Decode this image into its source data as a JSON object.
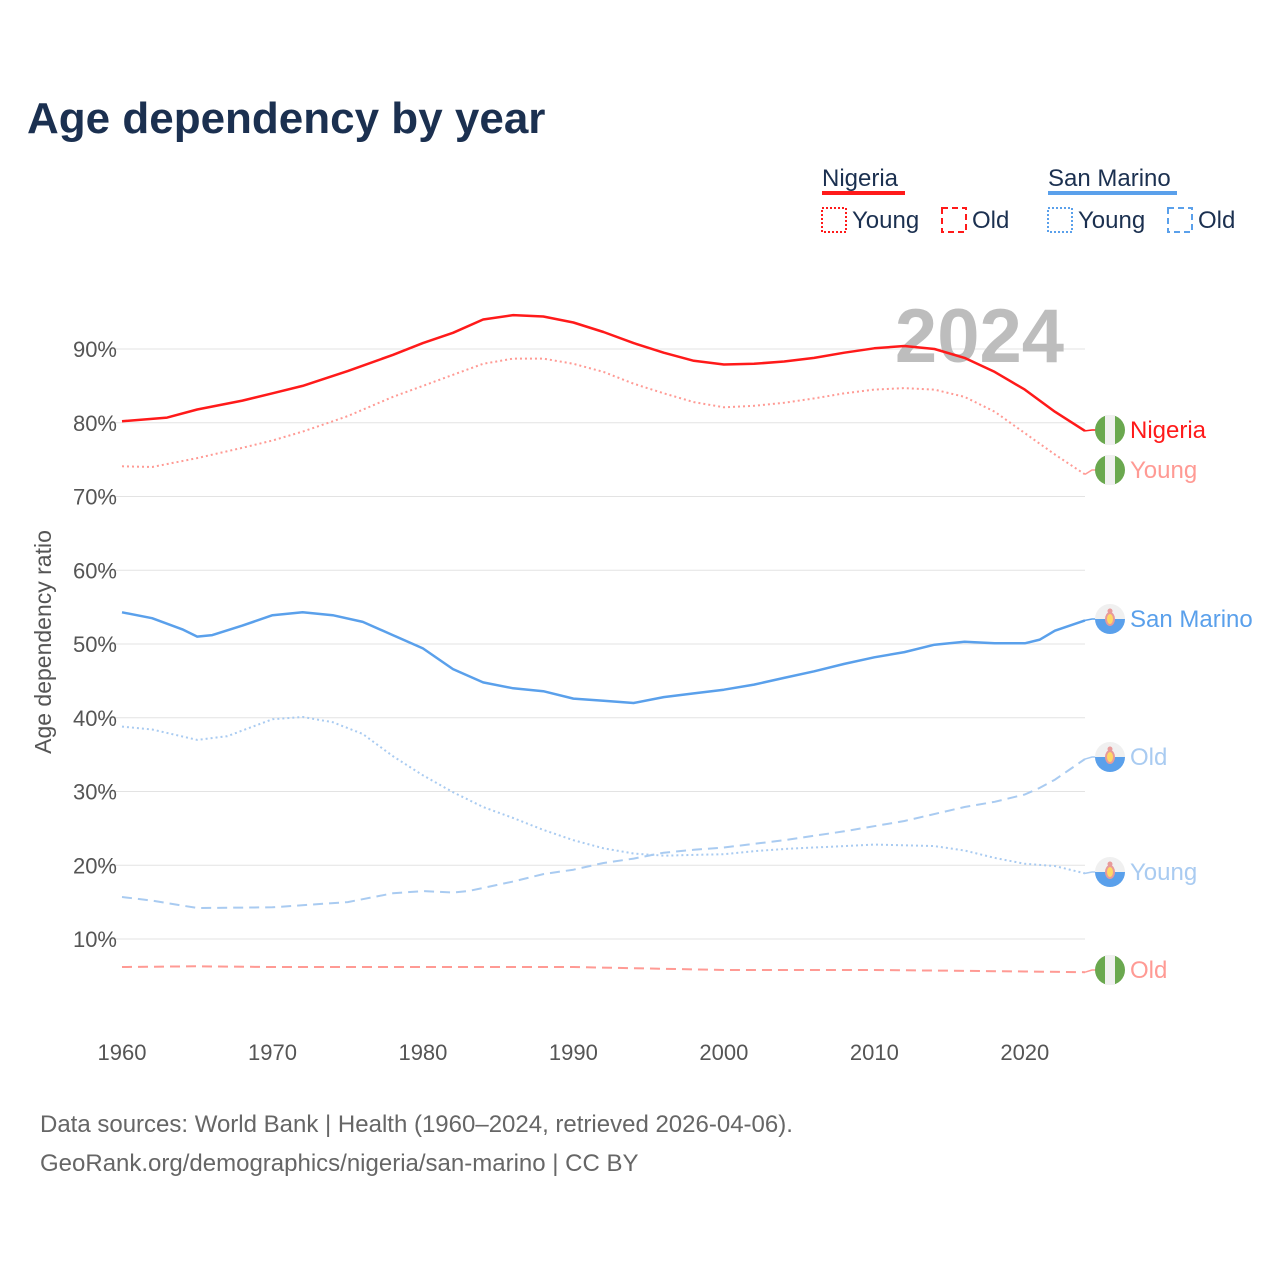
{
  "chart_data": {
    "type": "line",
    "title": "Age dependency by year",
    "ylabel": "Age dependency ratio",
    "xlabel": "",
    "xlim": [
      1960,
      2024
    ],
    "ylim": [
      0,
      100
    ],
    "x_ticks": [
      1960,
      1970,
      1980,
      1990,
      2000,
      2010,
      2020
    ],
    "x_tick_labels": [
      "1960",
      "1970",
      "1980",
      "1990",
      "2000",
      "2010",
      "2020"
    ],
    "y_ticks": [
      10,
      20,
      30,
      40,
      50,
      60,
      70,
      80,
      90
    ],
    "y_tick_labels": [
      "10%",
      "20%",
      "30%",
      "40%",
      "50%",
      "60%",
      "70%",
      "80%",
      "90%"
    ],
    "grid": true,
    "current_year_label": "2024",
    "legend": {
      "placement": "top-right",
      "groups": [
        {
          "country": "Nigeria",
          "color": "#ff1a1a",
          "items": [
            "Young",
            "Old"
          ]
        },
        {
          "country": "San Marino",
          "color": "#5aa0eb",
          "items": [
            "Young",
            "Old"
          ]
        }
      ]
    },
    "series": [
      {
        "name": "Nigeria",
        "end_label": "Nigeria",
        "color": "#ff1a1a",
        "style": "solid",
        "flag": "nigeria",
        "x": [
          1960,
          1963,
          1965,
          1968,
          1970,
          1972,
          1975,
          1978,
          1980,
          1982,
          1984,
          1986,
          1988,
          1990,
          1992,
          1994,
          1996,
          1998,
          2000,
          2002,
          2004,
          2006,
          2008,
          2010,
          2012,
          2014,
          2016,
          2018,
          2020,
          2022,
          2024
        ],
        "values": [
          80.2,
          80.7,
          81.8,
          83.0,
          84.0,
          85.0,
          87.0,
          89.2,
          90.8,
          92.2,
          94.0,
          94.6,
          94.4,
          93.6,
          92.3,
          90.8,
          89.5,
          88.4,
          87.9,
          88.0,
          88.3,
          88.8,
          89.5,
          90.1,
          90.4,
          90.0,
          88.8,
          86.9,
          84.5,
          81.5,
          78.9
        ]
      },
      {
        "name": "Nigeria Young",
        "end_label": "Young",
        "color": "#ff9a94",
        "style": "dotted",
        "flag": "nigeria",
        "x": [
          1960,
          1962,
          1965,
          1968,
          1970,
          1972,
          1975,
          1978,
          1980,
          1982,
          1984,
          1986,
          1988,
          1990,
          1992,
          1994,
          1996,
          1998,
          2000,
          2002,
          2004,
          2006,
          2008,
          2010,
          2012,
          2014,
          2016,
          2018,
          2020,
          2022,
          2024
        ],
        "values": [
          74.1,
          74.0,
          75.2,
          76.6,
          77.6,
          78.8,
          80.9,
          83.5,
          85.0,
          86.5,
          88.0,
          88.7,
          88.7,
          88.0,
          86.9,
          85.3,
          84.0,
          82.8,
          82.1,
          82.3,
          82.7,
          83.3,
          84.0,
          84.5,
          84.7,
          84.5,
          83.5,
          81.5,
          78.6,
          75.7,
          73.0
        ]
      },
      {
        "name": "San Marino",
        "end_label": "San Marino",
        "color": "#5aa0eb",
        "style": "solid",
        "flag": "san-marino",
        "x": [
          1960,
          1962,
          1964,
          1965,
          1966,
          1968,
          1970,
          1972,
          1974,
          1976,
          1978,
          1980,
          1982,
          1984,
          1986,
          1988,
          1990,
          1992,
          1994,
          1996,
          1998,
          2000,
          2002,
          2004,
          2006,
          2008,
          2010,
          2012,
          2014,
          2016,
          2018,
          2020,
          2021,
          2022,
          2024
        ],
        "values": [
          54.3,
          53.5,
          52.0,
          51.0,
          51.2,
          52.5,
          53.9,
          54.3,
          53.9,
          53.0,
          51.2,
          49.4,
          46.6,
          44.8,
          44.0,
          43.6,
          42.6,
          42.3,
          42.0,
          42.8,
          43.3,
          43.8,
          44.5,
          45.4,
          46.3,
          47.3,
          48.2,
          48.9,
          49.9,
          50.3,
          50.1,
          50.1,
          50.6,
          51.8,
          53.2
        ]
      },
      {
        "name": "San Marino Old",
        "end_label": "Old",
        "color": "#a9cbf1",
        "style": "dashed",
        "flag": "san-marino",
        "x": [
          1960,
          1962,
          1965,
          1970,
          1975,
          1978,
          1980,
          1982,
          1983,
          1986,
          1988,
          1990,
          1992,
          1994,
          1996,
          1998,
          2000,
          2004,
          2008,
          2012,
          2016,
          2018,
          2020,
          2021,
          2022,
          2024
        ],
        "values": [
          15.7,
          15.2,
          14.2,
          14.3,
          15.0,
          16.2,
          16.5,
          16.3,
          16.5,
          17.8,
          18.8,
          19.4,
          20.3,
          20.9,
          21.7,
          22.1,
          22.4,
          23.4,
          24.6,
          26.0,
          27.9,
          28.6,
          29.6,
          30.5,
          31.6,
          34.4
        ]
      },
      {
        "name": "San Marino Young",
        "end_label": "Young",
        "color": "#a9cbf1",
        "style": "dotted",
        "flag": "san-marino",
        "x": [
          1960,
          1962,
          1965,
          1967,
          1970,
          1972,
          1974,
          1976,
          1978,
          1980,
          1982,
          1984,
          1986,
          1988,
          1990,
          1992,
          1994,
          1996,
          1998,
          2000,
          2002,
          2004,
          2006,
          2008,
          2010,
          2012,
          2014,
          2016,
          2018,
          2020,
          2022,
          2024
        ],
        "values": [
          38.8,
          38.4,
          37.0,
          37.5,
          39.8,
          40.1,
          39.4,
          37.8,
          34.8,
          32.2,
          29.9,
          27.9,
          26.4,
          24.8,
          23.4,
          22.3,
          21.6,
          21.3,
          21.4,
          21.5,
          21.9,
          22.2,
          22.4,
          22.6,
          22.8,
          22.7,
          22.6,
          22.0,
          21.0,
          20.2,
          19.9,
          18.9
        ]
      },
      {
        "name": "Nigeria Old",
        "end_label": "Old",
        "color": "#ff9a94",
        "style": "dashed",
        "flag": "nigeria",
        "x": [
          1960,
          1965,
          1970,
          1980,
          1990,
          1995,
          2000,
          2010,
          2015,
          2020,
          2024
        ],
        "values": [
          6.2,
          6.3,
          6.2,
          6.2,
          6.2,
          6.0,
          5.8,
          5.8,
          5.7,
          5.6,
          5.5
        ]
      }
    ]
  },
  "footer": {
    "source_line": "Data sources: World Bank | Health (1960–2024, retrieved 2026-04-06).",
    "credit_line": "GeoRank.org/demographics/nigeria/san-marino | CC BY"
  }
}
